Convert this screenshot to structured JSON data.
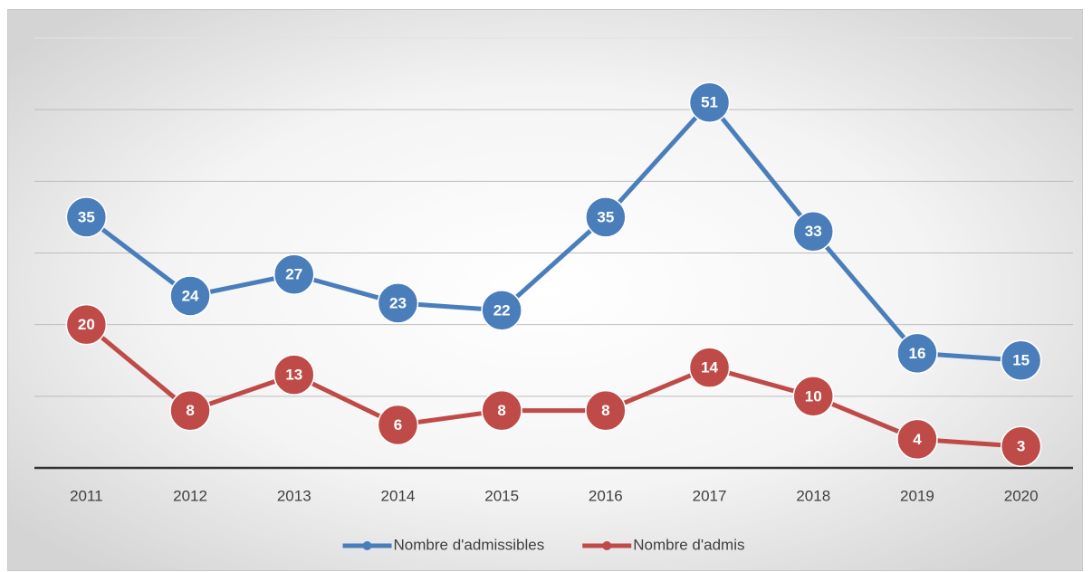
{
  "chart_data": {
    "type": "line",
    "categories": [
      "2011",
      "2012",
      "2013",
      "2014",
      "2015",
      "2016",
      "2017",
      "2018",
      "2019",
      "2020"
    ],
    "series": [
      {
        "name": "Nombre d'admissibles",
        "color": "#4a7ebb",
        "values": [
          35,
          24,
          27,
          23,
          22,
          35,
          51,
          33,
          16,
          15
        ]
      },
      {
        "name": "Nombre d'admis",
        "color": "#be4b48",
        "values": [
          20,
          8,
          13,
          6,
          8,
          8,
          14,
          10,
          4,
          3
        ]
      }
    ],
    "ylim": [
      0,
      60
    ],
    "yticks": [
      0,
      10,
      20,
      30,
      40,
      50,
      60
    ],
    "grid": true,
    "legend": "bottom"
  }
}
